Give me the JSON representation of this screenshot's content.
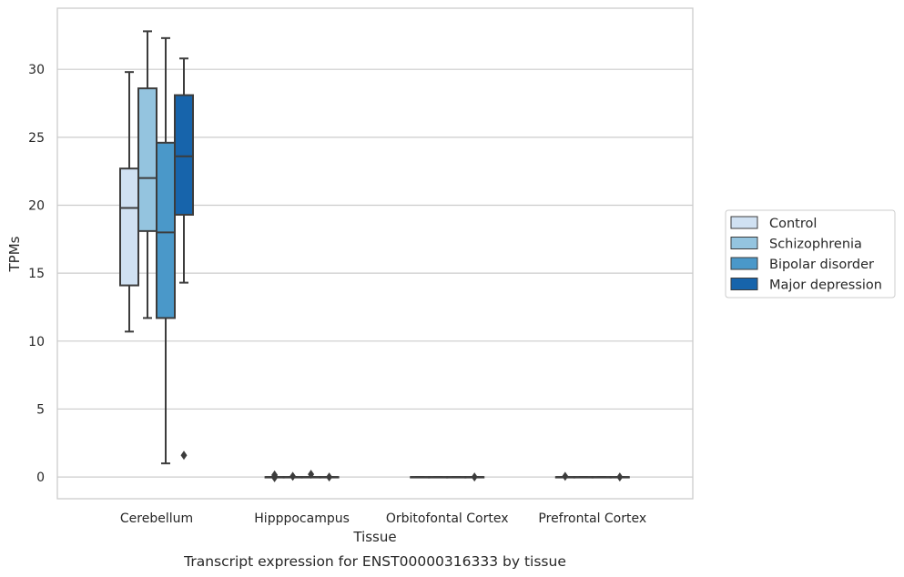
{
  "chart_data": {
    "type": "box",
    "xlabel": "Tissue",
    "ylabel": "TPMs",
    "caption": "Transcript expression for ENST00000316333 by tissue",
    "ylim": [
      -1.6,
      34.5
    ],
    "yticks": [
      0,
      5,
      10,
      15,
      20,
      25,
      30
    ],
    "categories": [
      "Cerebellum",
      "Hipppocampus",
      "Orbitofontal Cortex",
      "Prefrontal Cortex"
    ],
    "grid": "horizontal",
    "legend_placement": "center-right",
    "series": [
      {
        "name": "Control",
        "color": "#d0e1f2",
        "boxes": [
          {
            "category": "Cerebellum",
            "whisker_low": 10.7,
            "q1": 14.1,
            "median": 19.8,
            "q3": 22.7,
            "whisker_high": 29.8,
            "outliers": []
          },
          {
            "category": "Hipppocampus",
            "whisker_low": 0,
            "q1": 0,
            "median": 0,
            "q3": 0,
            "whisker_high": 0,
            "outliers": [
              0.15,
              0.05,
              -0.05
            ]
          },
          {
            "category": "Orbitofontal Cortex",
            "whisker_low": 0,
            "q1": 0,
            "median": 0,
            "q3": 0,
            "whisker_high": 0,
            "outliers": []
          },
          {
            "category": "Prefrontal Cortex",
            "whisker_low": 0,
            "q1": 0,
            "median": 0,
            "q3": 0,
            "whisker_high": 0,
            "outliers": [
              0.05
            ]
          }
        ]
      },
      {
        "name": "Schizophrenia",
        "color": "#94c4df",
        "boxes": [
          {
            "category": "Cerebellum",
            "whisker_low": 11.7,
            "q1": 18.1,
            "median": 22.0,
            "q3": 28.6,
            "whisker_high": 32.8,
            "outliers": []
          },
          {
            "category": "Hipppocampus",
            "whisker_low": 0,
            "q1": 0,
            "median": 0,
            "q3": 0,
            "whisker_high": 0,
            "outliers": [
              0.05
            ]
          },
          {
            "category": "Orbitofontal Cortex",
            "whisker_low": 0,
            "q1": 0,
            "median": 0,
            "q3": 0,
            "whisker_high": 0,
            "outliers": []
          },
          {
            "category": "Prefrontal Cortex",
            "whisker_low": 0,
            "q1": 0,
            "median": 0,
            "q3": 0,
            "whisker_high": 0,
            "outliers": []
          }
        ]
      },
      {
        "name": "Bipolar disorder",
        "color": "#4a98c9",
        "boxes": [
          {
            "category": "Cerebellum",
            "whisker_low": 1.0,
            "q1": 11.7,
            "median": 18.0,
            "q3": 24.6,
            "whisker_high": 32.3,
            "outliers": []
          },
          {
            "category": "Hipppocampus",
            "whisker_low": 0,
            "q1": 0,
            "median": 0,
            "q3": 0,
            "whisker_high": 0,
            "outliers": [
              0.2
            ]
          },
          {
            "category": "Orbitofontal Cortex",
            "whisker_low": 0,
            "q1": 0,
            "median": 0,
            "q3": 0,
            "whisker_high": 0,
            "outliers": []
          },
          {
            "category": "Prefrontal Cortex",
            "whisker_low": 0,
            "q1": 0,
            "median": 0,
            "q3": 0,
            "whisker_high": 0,
            "outliers": []
          }
        ]
      },
      {
        "name": "Major depression",
        "color": "#1764ab",
        "boxes": [
          {
            "category": "Cerebellum",
            "whisker_low": 14.3,
            "q1": 19.3,
            "median": 23.6,
            "q3": 28.1,
            "whisker_high": 30.8,
            "outliers": [
              1.6
            ]
          },
          {
            "category": "Hipppocampus",
            "whisker_low": 0,
            "q1": 0,
            "median": 0,
            "q3": 0,
            "whisker_high": 0,
            "outliers": [
              0.0
            ]
          },
          {
            "category": "Orbitofontal Cortex",
            "whisker_low": 0,
            "q1": 0,
            "median": 0,
            "q3": 0,
            "whisker_high": 0,
            "outliers": [
              0.0
            ]
          },
          {
            "category": "Prefrontal Cortex",
            "whisker_low": 0,
            "q1": 0,
            "median": 0,
            "q3": 0,
            "whisker_high": 0,
            "outliers": [
              0.0
            ]
          }
        ]
      }
    ]
  }
}
